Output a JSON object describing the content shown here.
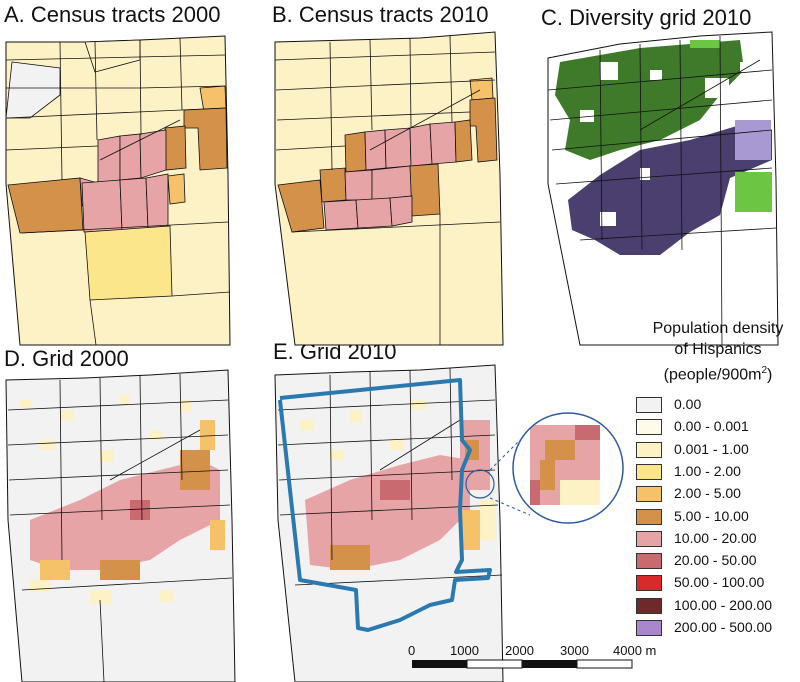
{
  "panels": {
    "a": {
      "title": "A. Census tracts 2000"
    },
    "b": {
      "title": "B. Census tracts 2010"
    },
    "c": {
      "title": "C.  Diversity grid  2010"
    },
    "d": {
      "title": "D. Grid 2000"
    },
    "e": {
      "title": "E. Grid 2010"
    }
  },
  "legend": {
    "title_line1": "Population density",
    "title_line2": "of Hispanics",
    "title_line3_prefix": "(people/900m",
    "title_line3_sup": "2",
    "title_line3_suffix": ")",
    "items": [
      {
        "label": "0.00",
        "color": "#f2f2f2"
      },
      {
        "label": "0.00 - 0.001",
        "color": "#fffbea"
      },
      {
        "label": "0.001 - 1.00",
        "color": "#fdf1c6"
      },
      {
        "label": "1.00 - 2.00",
        "color": "#fbe68c"
      },
      {
        "label": "2.00 - 5.00",
        "color": "#f5c26a"
      },
      {
        "label": "5.00 - 10.00",
        "color": "#d4914a"
      },
      {
        "label": "10.00 - 20.00",
        "color": "#e7a4a7"
      },
      {
        "label": "20.00 - 50.00",
        "color": "#c96a70"
      },
      {
        "label": "50.00 - 100.00",
        "color": "#d82a2a"
      },
      {
        "label": "100.00 - 200.00",
        "color": "#6e2a2a"
      },
      {
        "label": "200.00 - 500.00",
        "color": "#a887cc"
      }
    ]
  },
  "scale_bar": {
    "ticks": [
      "0",
      "1000",
      "2000",
      "3000",
      "4000 m"
    ]
  },
  "colors": {
    "tract_outline": "#111111",
    "study_area_outline": "#2a7ab0",
    "diversity_green_dark": "#3e7a2a",
    "diversity_green_light": "#6cc644",
    "diversity_purple_dark": "#4a3f6e",
    "diversity_purple_light": "#a999d2"
  }
}
